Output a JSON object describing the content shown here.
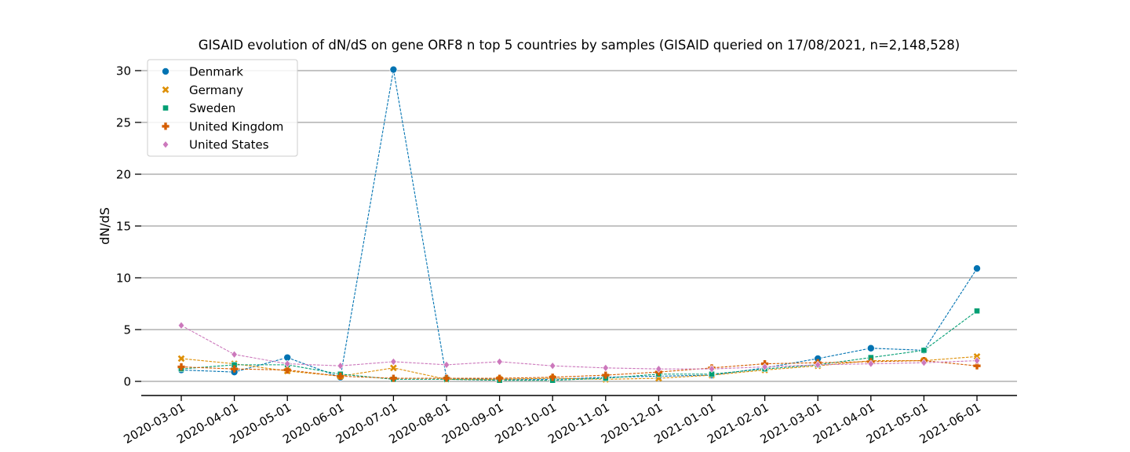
{
  "chart_data": {
    "type": "line",
    "title": "GISAID evolution of dN/dS on gene ORF8 n top 5 countries by samples (GISAID queried on 17/08/2021, n=2,148,528)",
    "xlabel": "",
    "ylabel": "dN/dS",
    "ylim": [
      -1.3,
      31
    ],
    "yticks": [
      0,
      5,
      10,
      15,
      20,
      25,
      30
    ],
    "grid": "horizontal",
    "legend_position": "top-left",
    "categories": [
      "2020-03-01",
      "2020-04-01",
      "2020-05-01",
      "2020-06-01",
      "2020-07-01",
      "2020-08-01",
      "2020-09-01",
      "2020-10-01",
      "2020-11-01",
      "2020-12-01",
      "2021-01-01",
      "2021-02-01",
      "2021-03-01",
      "2021-04-01",
      "2021-05-01",
      "2021-06-01"
    ],
    "series": [
      {
        "name": "Denmark",
        "color": "#0173b2",
        "marker": "circle",
        "values": [
          1.1,
          0.9,
          2.3,
          0.4,
          30.1,
          0.3,
          0.2,
          0.2,
          0.4,
          0.5,
          0.6,
          1.3,
          2.2,
          3.2,
          3.0,
          10.9
        ]
      },
      {
        "name": "Germany",
        "color": "#de8f05",
        "marker": "x",
        "values": [
          2.2,
          1.7,
          1.0,
          0.5,
          1.3,
          0.2,
          0.2,
          0.3,
          0.2,
          0.3,
          0.6,
          1.1,
          1.5,
          2.0,
          2.0,
          2.4
        ]
      },
      {
        "name": "Sweden",
        "color": "#029e73",
        "marker": "square",
        "values": [
          1.2,
          1.6,
          1.6,
          0.7,
          0.2,
          0.2,
          0.1,
          0.1,
          0.3,
          0.7,
          0.7,
          1.2,
          1.6,
          2.3,
          3.0,
          6.8
        ]
      },
      {
        "name": "United Kingdom",
        "color": "#d55e00",
        "marker": "plus",
        "values": [
          1.4,
          1.2,
          1.1,
          0.5,
          0.3,
          0.3,
          0.3,
          0.4,
          0.6,
          0.9,
          1.3,
          1.7,
          1.8,
          1.9,
          2.0,
          1.5
        ]
      },
      {
        "name": "United States",
        "color": "#cc78bc",
        "marker": "diamond",
        "values": [
          5.4,
          2.6,
          1.7,
          1.5,
          1.9,
          1.6,
          1.9,
          1.5,
          1.3,
          1.2,
          1.2,
          1.4,
          1.6,
          1.7,
          1.8,
          2.0
        ]
      }
    ]
  }
}
